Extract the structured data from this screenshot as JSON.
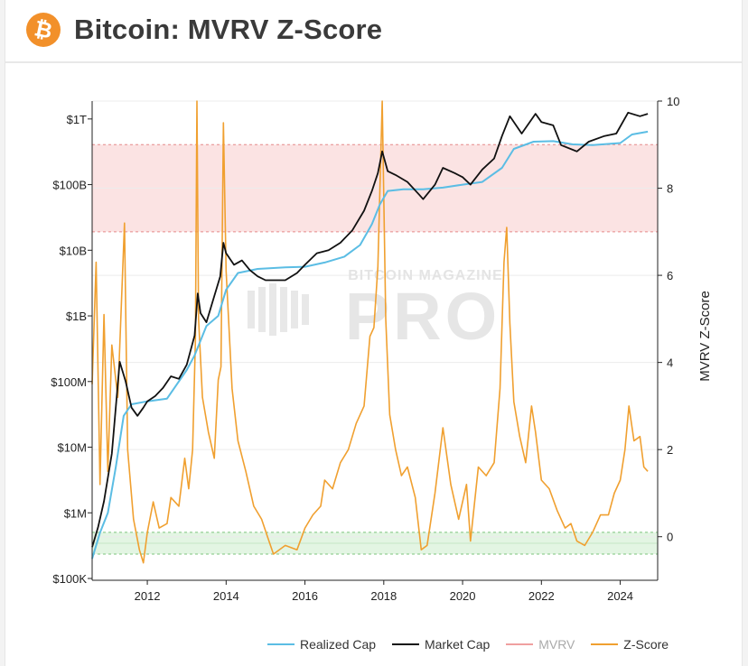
{
  "header": {
    "title": "Bitcoin: MVRV Z-Score",
    "logo_icon": "bitcoin-icon"
  },
  "watermark": {
    "line1": "BITCOIN MAGAZINE",
    "line2": "PRO"
  },
  "colors": {
    "realized_cap": "#5bbde4",
    "market_cap": "#111111",
    "mvrv": "#f0a0a0",
    "z_score": "#f0a030",
    "red_band": "#fbe3e3",
    "green_band": "#e3f5e3"
  },
  "chart_data": {
    "type": "line",
    "title": "Bitcoin: MVRV Z-Score",
    "x_ticks": [
      "2012",
      "2014",
      "2016",
      "2018",
      "2020",
      "2022",
      "2024"
    ],
    "xlim": [
      2010.6,
      2024.95
    ],
    "left_axis": {
      "scale": "log",
      "unit": "USD",
      "ticks": [
        "$100K",
        "$1M",
        "$10M",
        "$100M",
        "$1B",
        "$10B",
        "$100B",
        "$1T"
      ],
      "tick_values": [
        100000,
        1000000,
        10000000,
        100000000,
        1000000000,
        10000000000,
        100000000000,
        1000000000000
      ]
    },
    "right_axis": {
      "label": "MVRV Z-Score",
      "ticks": [
        "0",
        "2",
        "4",
        "6",
        "8",
        "10"
      ],
      "ylim": [
        -1,
        10
      ]
    },
    "bands": {
      "red_zone": [
        7,
        9
      ],
      "red_zone_mid": 8,
      "green_zone": [
        -0.4,
        0.1
      ],
      "green_zone_mid": -0.15
    },
    "legend": [
      "Realized Cap",
      "Market Cap",
      "MVRV",
      "Z-Score"
    ],
    "series": [
      {
        "name": "Market Cap",
        "axis": "left",
        "x": [
          2010.6,
          2010.75,
          2010.9,
          2011.1,
          2011.3,
          2011.45,
          2011.6,
          2011.75,
          2011.9,
          2012.0,
          2012.2,
          2012.4,
          2012.6,
          2012.8,
          2013.0,
          2013.2,
          2013.28,
          2013.35,
          2013.5,
          2013.7,
          2013.85,
          2013.93,
          2014.0,
          2014.2,
          2014.4,
          2014.6,
          2014.8,
          2015.0,
          2015.2,
          2015.5,
          2015.8,
          2016.0,
          2016.3,
          2016.6,
          2016.9,
          2017.2,
          2017.5,
          2017.7,
          2017.85,
          2017.96,
          2018.1,
          2018.3,
          2018.6,
          2018.9,
          2019.0,
          2019.3,
          2019.5,
          2019.8,
          2020.0,
          2020.2,
          2020.5,
          2020.8,
          2021.0,
          2021.2,
          2021.5,
          2021.85,
          2022.0,
          2022.3,
          2022.5,
          2022.9,
          2023.2,
          2023.6,
          2023.9,
          2024.2,
          2024.5,
          2024.7
        ],
        "y": [
          300000,
          600000,
          1500000,
          8000000,
          200000000,
          100000000,
          40000000,
          30000000,
          40000000,
          50000000,
          60000000,
          80000000,
          120000000,
          110000000,
          180000000,
          500000000,
          2200000000,
          1100000000,
          800000000,
          2000000000,
          4000000000,
          13000000000,
          9000000000,
          6000000000,
          7000000000,
          5000000000,
          4000000000,
          3500000000,
          3500000000,
          3500000000,
          4500000000,
          6000000000,
          9000000000,
          10000000000,
          13000000000,
          20000000000,
          40000000000,
          80000000000,
          150000000000,
          320000000000,
          160000000000,
          140000000000,
          110000000000,
          70000000000,
          60000000000,
          100000000000,
          180000000000,
          150000000000,
          130000000000,
          100000000000,
          170000000000,
          250000000000,
          550000000000,
          1100000000000,
          600000000000,
          1200000000000,
          900000000000,
          800000000000,
          400000000000,
          320000000000,
          450000000000,
          550000000000,
          600000000000,
          1250000000000,
          1100000000000,
          1200000000000
        ]
      },
      {
        "name": "Realized Cap",
        "axis": "left",
        "x": [
          2010.6,
          2010.8,
          2011.0,
          2011.2,
          2011.4,
          2011.6,
          2012.0,
          2012.5,
          2013.0,
          2013.2,
          2013.5,
          2013.8,
          2014.0,
          2014.3,
          2014.8,
          2015.5,
          2016.0,
          2016.5,
          2017.0,
          2017.4,
          2017.7,
          2017.9,
          2018.1,
          2018.5,
          2019.0,
          2019.5,
          2020.0,
          2020.5,
          2021.0,
          2021.3,
          2021.8,
          2022.3,
          2022.8,
          2023.3,
          2024.0,
          2024.3,
          2024.7
        ],
        "y": [
          200000,
          500000,
          1000000,
          5000000,
          30000000,
          45000000,
          50000000,
          55000000,
          150000000,
          250000000,
          700000000,
          1000000000,
          2500000000,
          4500000000,
          5200000000,
          5500000000,
          5600000000,
          6500000000,
          8000000000,
          12000000000,
          25000000000,
          50000000000,
          80000000000,
          85000000000,
          85000000000,
          90000000000,
          100000000000,
          110000000000,
          180000000000,
          350000000000,
          450000000000,
          460000000000,
          410000000000,
          400000000000,
          430000000000,
          580000000000,
          640000000000
        ]
      },
      {
        "name": "Z-Score",
        "axis": "right",
        "x": [
          2010.6,
          2010.7,
          2010.8,
          2010.9,
          2011.0,
          2011.1,
          2011.25,
          2011.42,
          2011.5,
          2011.65,
          2011.8,
          2011.9,
          2012.0,
          2012.15,
          2012.3,
          2012.5,
          2012.6,
          2012.8,
          2012.95,
          2013.05,
          2013.15,
          2013.22,
          2013.26,
          2013.3,
          2013.4,
          2013.55,
          2013.7,
          2013.8,
          2013.87,
          2013.93,
          2014.0,
          2014.15,
          2014.3,
          2014.5,
          2014.7,
          2014.9,
          2015.05,
          2015.2,
          2015.5,
          2015.8,
          2016.0,
          2016.2,
          2016.4,
          2016.5,
          2016.7,
          2016.9,
          2017.1,
          2017.3,
          2017.5,
          2017.65,
          2017.75,
          2017.85,
          2017.96,
          2018.05,
          2018.15,
          2018.3,
          2018.45,
          2018.6,
          2018.8,
          2018.95,
          2019.1,
          2019.3,
          2019.5,
          2019.7,
          2019.9,
          2020.1,
          2020.2,
          2020.4,
          2020.6,
          2020.8,
          2020.95,
          2021.05,
          2021.12,
          2021.2,
          2021.3,
          2021.45,
          2021.6,
          2021.75,
          2021.85,
          2022.0,
          2022.2,
          2022.4,
          2022.6,
          2022.75,
          2022.9,
          2023.1,
          2023.3,
          2023.5,
          2023.7,
          2023.85,
          2024.0,
          2024.12,
          2024.22,
          2024.35,
          2024.5,
          2024.6,
          2024.7
        ],
        "y": [
          3.5,
          6.3,
          1.2,
          5.1,
          1.5,
          4.4,
          3.2,
          7.2,
          2.0,
          0.4,
          -0.3,
          -0.6,
          0.1,
          0.8,
          0.2,
          0.3,
          0.9,
          0.7,
          1.8,
          1.1,
          2.0,
          4.5,
          10.0,
          5.0,
          3.2,
          2.4,
          1.8,
          3.6,
          3.9,
          9.5,
          6.1,
          3.4,
          2.2,
          1.5,
          0.7,
          0.4,
          0.0,
          -0.4,
          -0.2,
          -0.3,
          0.2,
          0.5,
          0.7,
          1.3,
          1.1,
          1.7,
          2.0,
          2.6,
          3.0,
          4.6,
          4.8,
          6.2,
          10.0,
          5.0,
          2.8,
          2.0,
          1.4,
          1.6,
          0.9,
          -0.3,
          -0.2,
          1.0,
          2.5,
          1.2,
          0.4,
          1.2,
          -0.1,
          1.6,
          1.4,
          1.7,
          3.4,
          6.3,
          7.1,
          4.9,
          3.1,
          2.3,
          1.7,
          3.0,
          2.4,
          1.3,
          1.1,
          0.6,
          0.2,
          0.3,
          -0.1,
          -0.2,
          0.1,
          0.5,
          0.5,
          1.0,
          1.3,
          2.0,
          3.0,
          2.2,
          2.3,
          1.6,
          1.5
        ]
      }
    ]
  }
}
